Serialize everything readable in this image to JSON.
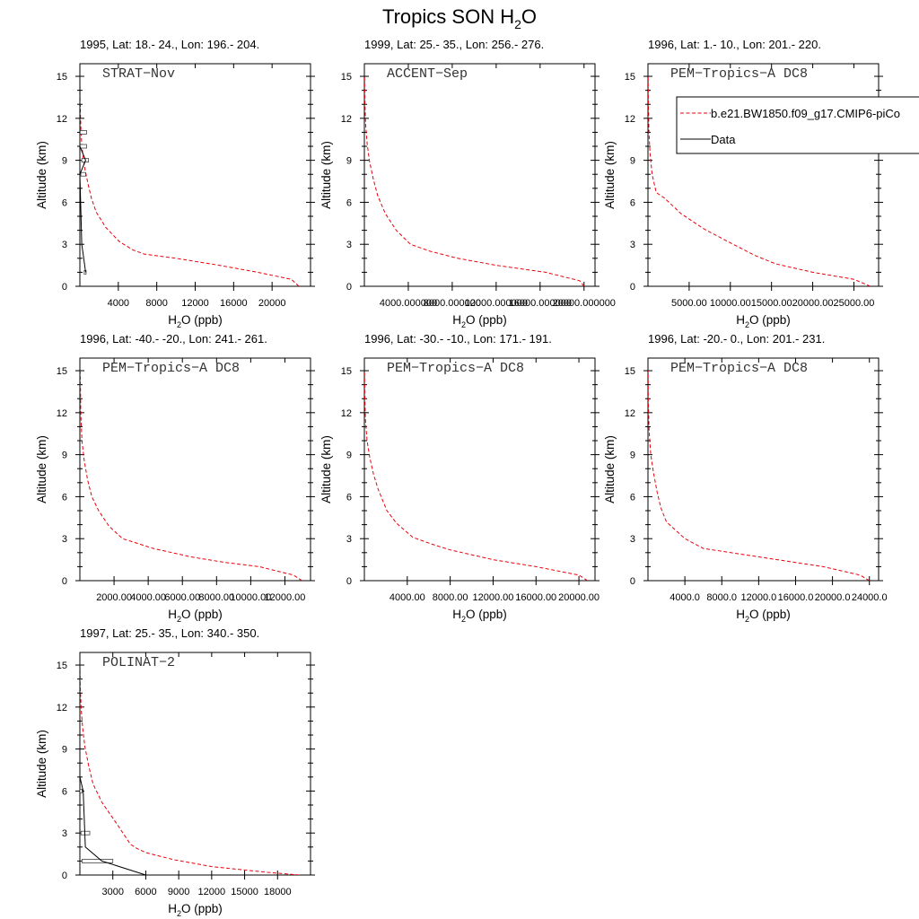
{
  "title": {
    "main": "Tropics SON H",
    "sub": "2",
    "tail": "O"
  },
  "axis_labels": {
    "y": "Altitude (km)",
    "x_pre": "H",
    "x_sub": "2",
    "x_post": "O (ppb)"
  },
  "legend": {
    "model": "b.e21.BW1850.f09_g17.CMIP6-piCo",
    "data": "Data",
    "model_color": "#e8000b",
    "data_color": "#000000"
  },
  "chart_data": [
    {
      "type": "line",
      "header": "1995, Lat: 18.- 24., Lon: 196.- 204.",
      "campaign": "STRAT−Nov",
      "xlim": [
        0,
        24000
      ],
      "ylim": [
        0,
        15.9
      ],
      "yticks": [
        0,
        3,
        6,
        9,
        12,
        15
      ],
      "xticks": [
        4000,
        8000,
        12000,
        16000,
        20000
      ],
      "xtick_labels": [
        "4000",
        "8000",
        "12000",
        "16000",
        "20000"
      ],
      "model": {
        "x": [
          22800,
          22000,
          18500,
          14500,
          10000,
          6700,
          5500,
          4100,
          2700,
          1700,
          1200,
          850,
          550,
          320,
          180,
          100,
          60,
          30,
          15
        ],
        "y": [
          0,
          0.5,
          1.0,
          1.5,
          2.0,
          2.3,
          2.6,
          3.2,
          4.2,
          5.3,
          6.3,
          7.3,
          8.3,
          9.3,
          10.3,
          11.3,
          12.3,
          13.5,
          15
        ]
      },
      "data": {
        "x": [
          600,
          400,
          200,
          0,
          600,
          0,
          0,
          0,
          0
        ],
        "y": [
          1,
          2,
          3,
          8,
          9,
          10,
          11,
          12,
          13
        ]
      },
      "boxes": [
        {
          "alt": 1,
          "lo": 450,
          "hi": 650
        },
        {
          "alt": 8,
          "lo": 100,
          "hi": 600
        },
        {
          "alt": 9,
          "lo": 200,
          "hi": 900
        },
        {
          "alt": 10,
          "lo": 0,
          "hi": 700
        },
        {
          "alt": 11,
          "lo": 0,
          "hi": 700
        }
      ]
    },
    {
      "type": "line",
      "header": "1999, Lat: 25.- 35., Lon: 256.- 276.",
      "campaign": "ACCENT−Sep",
      "xlim": [
        0,
        21000
      ],
      "ylim": [
        0,
        15.9
      ],
      "yticks": [
        0,
        3,
        6,
        9,
        12,
        15
      ],
      "xticks": [
        4000,
        8000,
        12000,
        16000,
        20000
      ],
      "xtick_labels": [
        "4000.000000",
        "8000.000000",
        "12000.000000",
        "16000.000000",
        "20000.000000"
      ],
      "model": {
        "x": [
          20000,
          19600,
          16500,
          12000,
          8500,
          6000,
          4200,
          2900,
          1900,
          1200,
          800,
          450,
          250,
          120,
          50,
          20
        ],
        "y": [
          0,
          0.4,
          1.0,
          1.5,
          2.0,
          2.5,
          3.0,
          4.0,
          5.2,
          6.5,
          7.7,
          9.0,
          10.2,
          11.5,
          13.0,
          15
        ]
      },
      "data": {
        "x": [],
        "y": []
      },
      "boxes": []
    },
    {
      "type": "line",
      "header": "1996, Lat: 1.- 10., Lon: 201.- 220.",
      "campaign": "PEM−Tropics−A DC8",
      "xlim": [
        0,
        28000
      ],
      "ylim": [
        0,
        15.9
      ],
      "yticks": [
        0,
        3,
        6,
        9,
        12,
        15
      ],
      "xticks": [
        5000,
        10000,
        15000,
        20000,
        25000
      ],
      "xtick_labels": [
        "5000.00",
        "10000.00",
        "15000.00",
        "20000.00",
        "25000.00"
      ],
      "model": {
        "x": [
          27000,
          25000,
          20000,
          15500,
          13000,
          10000,
          6800,
          4000,
          2000,
          1000,
          500,
          250,
          120,
          50,
          20
        ],
        "y": [
          0,
          0.5,
          1.0,
          1.6,
          2.2,
          3.1,
          4.1,
          5.2,
          6.3,
          6.7,
          8.0,
          9.5,
          11.0,
          12.8,
          15
        ]
      },
      "data": {
        "x": [],
        "y": []
      },
      "boxes": []
    },
    {
      "type": "line",
      "header": "1996, Lat: -40.- -20., Lon: 241.- 261.",
      "campaign": "PEM−Tropics−A DC8",
      "xlim": [
        0,
        13500
      ],
      "ylim": [
        0,
        15.9
      ],
      "yticks": [
        0,
        3,
        6,
        9,
        12,
        15
      ],
      "xticks": [
        2000,
        4000,
        6000,
        8000,
        10000,
        12000
      ],
      "xtick_labels": [
        "2000.00",
        "4000.00",
        "6000.00",
        "8000.00",
        "10000.00",
        "12000.00"
      ],
      "model": {
        "x": [
          13000,
          12500,
          10500,
          8500,
          6500,
          4300,
          2500,
          1700,
          1100,
          700,
          450,
          250,
          120,
          50,
          20
        ],
        "y": [
          0,
          0.4,
          1.0,
          1.3,
          1.7,
          2.3,
          3.0,
          3.9,
          5.0,
          6.0,
          7.2,
          8.6,
          10.0,
          12.0,
          15
        ]
      },
      "data": {
        "x": [],
        "y": []
      },
      "boxes": []
    },
    {
      "type": "line",
      "header": "1996, Lat: -30.- -10., Lon: 171.- 191.",
      "campaign": "PEM−Tropics−A DC8",
      "xlim": [
        0,
        21500
      ],
      "ylim": [
        0,
        15.9
      ],
      "yticks": [
        0,
        3,
        6,
        9,
        12,
        15
      ],
      "xticks": [
        4000,
        8000,
        12000,
        16000,
        20000
      ],
      "xtick_labels": [
        "4000.00",
        "8000.00",
        "12000.00",
        "16000.00",
        "20000.00"
      ],
      "model": {
        "x": [
          20800,
          20000,
          16000,
          12000,
          8000,
          6300,
          4500,
          3000,
          2100,
          1300,
          850,
          500,
          250,
          100,
          40,
          15
        ],
        "y": [
          0,
          0.4,
          1.0,
          1.5,
          2.2,
          2.6,
          3.1,
          4.1,
          5.0,
          6.5,
          7.6,
          8.8,
          10.0,
          11.5,
          13.0,
          15
        ]
      },
      "data": {
        "x": [],
        "y": []
      },
      "boxes": []
    },
    {
      "type": "line",
      "header": "1996, Lat: -20.- 0., Lon: 201.- 231.",
      "campaign": "PEM−Tropics−A DC8",
      "xlim": [
        0,
        25000
      ],
      "ylim": [
        0,
        15.9
      ],
      "yticks": [
        0,
        3,
        6,
        9,
        12,
        15
      ],
      "xticks": [
        4000,
        8000,
        12000,
        16000,
        20000,
        24000
      ],
      "xtick_labels": [
        "4000.0",
        "8000.0",
        "12000.0",
        "16000.0",
        "20000.0",
        "24000.0"
      ],
      "model": {
        "x": [
          24000,
          23000,
          19000,
          14000,
          9000,
          6000,
          4000,
          3000,
          2000,
          1400,
          1000,
          600,
          300,
          120,
          40,
          15
        ],
        "y": [
          0,
          0.4,
          1.0,
          1.5,
          2.0,
          2.3,
          3.0,
          3.6,
          4.2,
          5.2,
          6.3,
          7.7,
          9.0,
          10.8,
          12.8,
          15
        ]
      },
      "data": {
        "x": [],
        "y": []
      },
      "boxes": []
    },
    {
      "type": "line",
      "header": "1997, Lat: 25.- 35., Lon: 340.- 350.",
      "campaign": "POLINAT−2",
      "xlim": [
        0,
        21000
      ],
      "ylim": [
        0,
        15.9
      ],
      "yticks": [
        0,
        3,
        6,
        9,
        12,
        15
      ],
      "xticks": [
        3000,
        6000,
        9000,
        12000,
        15000,
        18000
      ],
      "xtick_labels": [
        "3000",
        "6000",
        "9000",
        "12000",
        "15000",
        "18000"
      ],
      "model": {
        "x": [
          20000,
          17000,
          12000,
          8500,
          6000,
          5200,
          4600,
          3500,
          2000,
          1200,
          800,
          450,
          250,
          120,
          50,
          20
        ],
        "y": [
          0,
          0.2,
          0.6,
          1.1,
          1.6,
          1.9,
          2.2,
          3.5,
          5.2,
          6.5,
          7.8,
          9.2,
          10.5,
          11.8,
          13.2,
          15
        ]
      },
      "data": {
        "x": [
          6000,
          2000,
          500,
          300,
          0
        ],
        "y": [
          0,
          1,
          2,
          6,
          7
        ]
      },
      "boxes": [
        {
          "alt": 1,
          "lo": 200,
          "hi": 3000
        },
        {
          "alt": 3,
          "lo": 100,
          "hi": 900
        },
        {
          "alt": 6,
          "lo": 0,
          "hi": 200
        }
      ]
    }
  ]
}
